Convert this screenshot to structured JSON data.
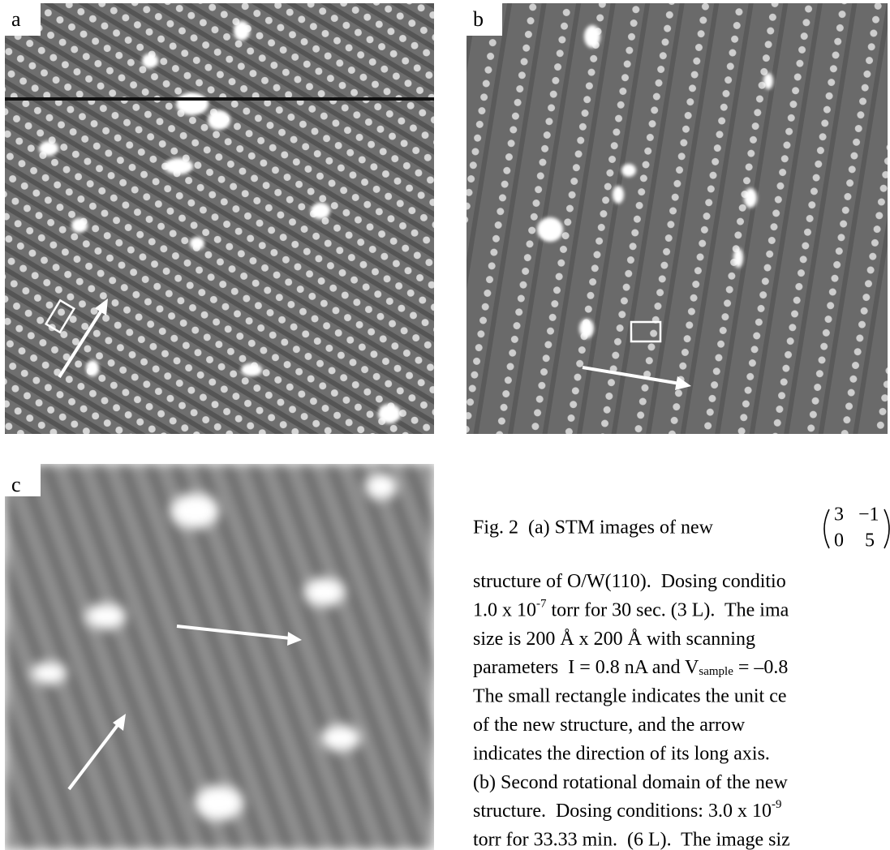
{
  "panels": [
    {
      "label": "a"
    },
    {
      "label": "b"
    },
    {
      "label": "c"
    }
  ],
  "caption": {
    "intro": "Fig. 2  (a) STM images of new",
    "matrix": [
      [
        "3",
        "−1"
      ],
      [
        "0",
        "5"
      ]
    ],
    "lines": [
      {
        "text": "structure of O/W(110).  Dosing conditio"
      },
      {
        "text": "1.0 x 10",
        "sup": "-7",
        "after": " torr for 30 sec. (3 L).  The ima"
      },
      {
        "text": "size is 200 Å x 200 Å with scanning"
      },
      {
        "text": "parameters  I = 0.8 nA and V",
        "sub": "sample",
        "after": " = –0.8"
      },
      {
        "text": "The small rectangle indicates the unit ce"
      },
      {
        "text": "of the new structure, and the arrow"
      },
      {
        "text": "indicates the direction of its long axis."
      },
      {
        "text": "(b) Second rotational domain of the new"
      },
      {
        "text": "structure.  Dosing conditions: 3.0 x 10",
        "sup": "-9"
      },
      {
        "text": "torr for 33.33 min.  (6 L).  The image siz"
      }
    ]
  }
}
